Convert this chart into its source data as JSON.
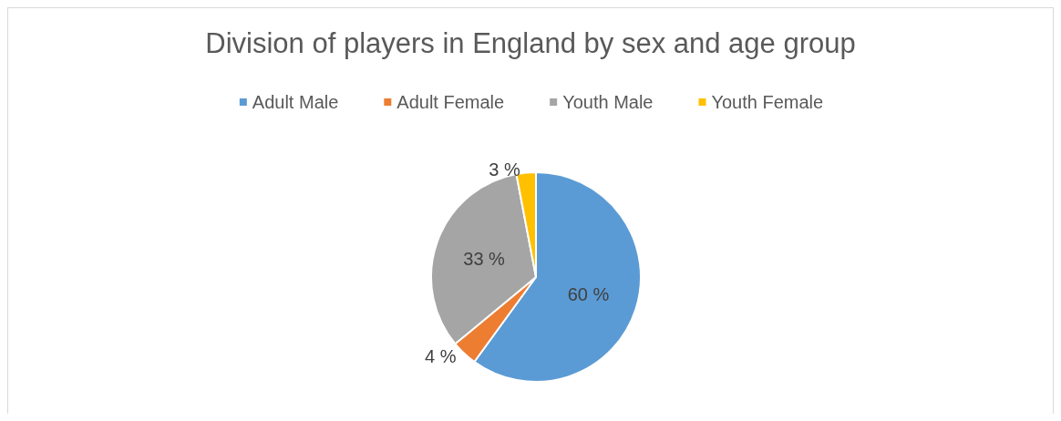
{
  "chart_data": {
    "type": "pie",
    "title": "Division of players in England by sex and age group",
    "categories": [
      "Adult Male",
      "Adult Female",
      "Youth Male",
      "Youth Female"
    ],
    "values": [
      60,
      4,
      33,
      3
    ],
    "colors": [
      "#5b9bd5",
      "#ed7d31",
      "#a5a5a5",
      "#ffc000"
    ],
    "value_labels": [
      "60 %",
      "4 %",
      "33 %",
      "3 %"
    ],
    "legend": "top"
  }
}
